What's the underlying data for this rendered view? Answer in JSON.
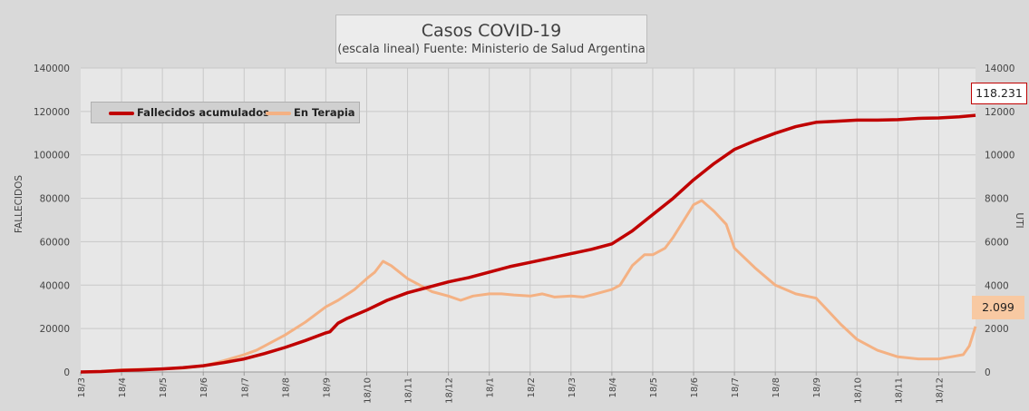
{
  "title": "Casos COVID-19",
  "subtitle": "(escala lineal) Fuente: Ministerio de Salud Argentina",
  "callouts": {
    "fallecidos_last": "118.231",
    "terapia_last": "2.099"
  },
  "colors": {
    "fallecidos": "#c00000",
    "terapia": "#f4b183",
    "background": "#d9d9d9",
    "plot": "#e7e7e7",
    "grid": "#c8c8c8"
  },
  "chart_data": {
    "type": "line",
    "title": "Casos COVID-19",
    "subtitle": "(escala lineal) Fuente: Ministerio de Salud Argentina",
    "xlabel": "",
    "ylabel": "FALLECIDOS",
    "y2label": "UTI",
    "ylim": [
      0,
      140000
    ],
    "y2lim": [
      0,
      14000
    ],
    "yticks": [
      "0",
      "20000",
      "40000",
      "60000",
      "80000",
      "100000",
      "120000",
      "140000"
    ],
    "y2ticks": [
      "0",
      "2000",
      "4000",
      "6000",
      "8000",
      "10000",
      "12000",
      "14000"
    ],
    "categories": [
      "18/3",
      "18/4",
      "18/5",
      "18/6",
      "18/7",
      "18/8",
      "18/9",
      "18/10",
      "18/11",
      "18/12",
      "18/1",
      "18/2",
      "18/3",
      "18/4",
      "18/5",
      "18/6",
      "18/7",
      "18/8",
      "18/9",
      "18/10",
      "18/11",
      "18/12"
    ],
    "x_month_index": [
      0,
      1,
      2,
      3,
      4,
      5,
      6,
      7,
      8,
      9,
      10,
      11,
      12,
      13,
      14,
      15,
      16,
      17,
      18,
      19,
      20,
      21,
      21.9
    ],
    "legend_position": "top-left",
    "grid": true,
    "series": [
      {
        "name": "Fallecidos acumulados",
        "axis": "left",
        "x": [
          0,
          0.5,
          1,
          1.5,
          2,
          2.5,
          3,
          3.5,
          4,
          4.5,
          5,
          5.5,
          6,
          6.1,
          6.2,
          6.3,
          6.5,
          7,
          7.5,
          8,
          8.5,
          9,
          9.5,
          10,
          10.5,
          11,
          11.5,
          12,
          12.5,
          13,
          13.5,
          14,
          14.5,
          15,
          15.5,
          16,
          16.5,
          17,
          17.5,
          18,
          18.5,
          19,
          19.5,
          20,
          20.5,
          21,
          21.5,
          21.9
        ],
        "values": [
          0,
          200,
          700,
          1000,
          1400,
          2000,
          2900,
          4300,
          6000,
          8500,
          11300,
          14500,
          18000,
          18500,
          20500,
          22500,
          24500,
          28500,
          33000,
          36500,
          39000,
          41500,
          43500,
          46000,
          48500,
          50500,
          52500,
          54500,
          56500,
          59000,
          65000,
          72500,
          80000,
          88500,
          96000,
          102500,
          106500,
          110000,
          113000,
          115000,
          115500,
          116000,
          116000,
          116200,
          116800,
          117000,
          117500,
          118231
        ]
      },
      {
        "name": "En Terapia",
        "axis": "right",
        "x": [
          0,
          0.5,
          1,
          1.5,
          2,
          2.5,
          3,
          3.5,
          4,
          4.3,
          4.5,
          5,
          5.5,
          6,
          6.3,
          6.7,
          7,
          7.2,
          7.4,
          7.6,
          7.8,
          8,
          8.3,
          8.6,
          9,
          9.3,
          9.6,
          10,
          10.3,
          10.6,
          11,
          11.3,
          11.6,
          12,
          12.3,
          12.6,
          13,
          13.2,
          13.5,
          13.8,
          14,
          14.3,
          14.5,
          14.7,
          15,
          15.2,
          15.5,
          15.8,
          16,
          16.5,
          17,
          17.5,
          18,
          18.3,
          18.6,
          19,
          19.5,
          20,
          20.5,
          21,
          21.3,
          21.6,
          21.75,
          21.9
        ],
        "values": [
          0,
          30,
          100,
          130,
          140,
          180,
          280,
          520,
          800,
          1000,
          1200,
          1700,
          2300,
          3000,
          3300,
          3800,
          4300,
          4600,
          5100,
          4900,
          4600,
          4300,
          4000,
          3700,
          3500,
          3300,
          3500,
          3600,
          3600,
          3550,
          3500,
          3600,
          3450,
          3500,
          3450,
          3600,
          3800,
          4000,
          4900,
          5400,
          5400,
          5700,
          6200,
          6800,
          7700,
          7900,
          7400,
          6800,
          5700,
          4800,
          4000,
          3600,
          3400,
          2800,
          2200,
          1500,
          1000,
          700,
          600,
          600,
          700,
          800,
          1200,
          2099
        ]
      }
    ]
  }
}
